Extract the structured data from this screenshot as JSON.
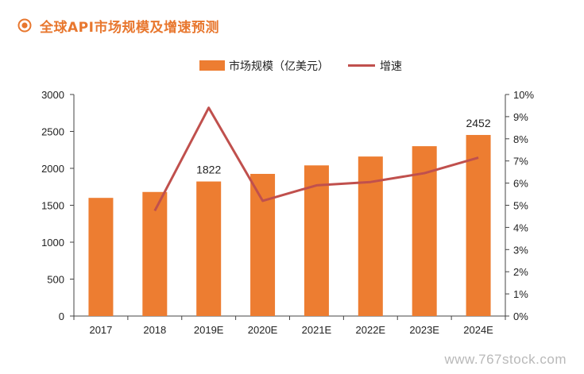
{
  "header": {
    "title": "全球API市场规模及增速预测"
  },
  "watermark": "www.767stock.com",
  "colors": {
    "accent": "#e8772e",
    "bar": "#ed7d31",
    "line": "#c0504d",
    "axis": "#444444"
  },
  "chart_data": {
    "type": "bar",
    "title": "全球API市场规模及增速预测",
    "categories": [
      "2017",
      "2018",
      "2019E",
      "2020E",
      "2021E",
      "2022E",
      "2023E",
      "2024E"
    ],
    "series": [
      {
        "name": "市场规模（亿美元）",
        "type": "bar",
        "axis": "left",
        "values": [
          1600,
          1680,
          1822,
          1925,
          2040,
          2160,
          2300,
          2452
        ]
      },
      {
        "name": "增速",
        "type": "line",
        "axis": "right",
        "values": [
          null,
          4.75,
          9.4,
          5.2,
          5.9,
          6.05,
          6.45,
          7.15
        ]
      }
    ],
    "data_labels": [
      {
        "category": "2019E",
        "text": "1822"
      },
      {
        "category": "2024E",
        "text": "2452"
      }
    ],
    "y_left": {
      "min": 0,
      "max": 3000,
      "ticks": [
        "0",
        "500",
        "1000",
        "1500",
        "2000",
        "2500",
        "3000"
      ]
    },
    "y_right": {
      "min": 0,
      "max": 10,
      "ticks": [
        "0%",
        "1%",
        "2%",
        "3%",
        "4%",
        "5%",
        "6%",
        "7%",
        "8%",
        "9%",
        "10%"
      ]
    },
    "grid": false,
    "legend": "top-center"
  }
}
